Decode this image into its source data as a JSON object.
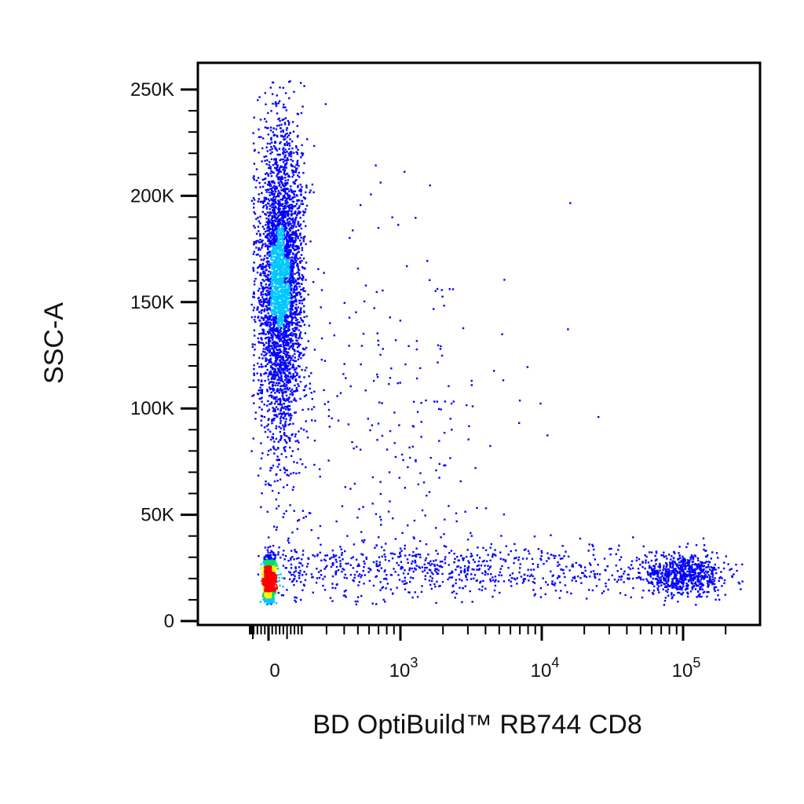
{
  "chart_data": {
    "type": "scatter",
    "title": "",
    "xlabel": "BD OptiBuild™ RB744 CD8",
    "ylabel": "SSC-A",
    "x_scale": "biexponential",
    "y_scale": "linear",
    "ylim": [
      0,
      260000
    ],
    "grid": false,
    "density_coloring": true,
    "x_ticks": [
      {
        "value": 0,
        "base": "0",
        "exp": ""
      },
      {
        "value": 1000,
        "base": "10",
        "exp": "3"
      },
      {
        "value": 10000,
        "base": "10",
        "exp": "4"
      },
      {
        "value": 100000,
        "base": "10",
        "exp": "5"
      }
    ],
    "y_ticks": [
      {
        "value": 0,
        "label": "0"
      },
      {
        "value": 50000,
        "label": "50K"
      },
      {
        "value": 100000,
        "label": "100K"
      },
      {
        "value": 150000,
        "label": "150K"
      },
      {
        "value": 200000,
        "label": "200K"
      },
      {
        "value": 250000,
        "label": "250K"
      }
    ],
    "populations": [
      {
        "x_center": 0,
        "x_spread": 15,
        "ssc_center": 20000,
        "ssc_spread": 5000,
        "weight": 0.24
      },
      {
        "x_center": 60,
        "x_spread": 60,
        "ssc_center": 160000,
        "ssc_spread": 36000,
        "weight": 0.5
      },
      {
        "x_center": 100000,
        "x_spread": 0.14,
        "ssc_center": 22000,
        "ssc_spread": 5000,
        "weight": 0.1
      },
      {
        "x_center": 3000,
        "x_spread": 0.9,
        "ssc_center": 25000,
        "ssc_spread": 6000,
        "weight": 0.11
      },
      {
        "x_center": 600,
        "x_spread": 0.5,
        "ssc_center": 90000,
        "ssc_spread": 55000,
        "weight": 0.05
      }
    ],
    "colors": {
      "low": "#0000ff",
      "mid_low": "#00c8ff",
      "mid": "#00e060",
      "mid_high": "#ffff00",
      "high": "#ff0000"
    }
  }
}
